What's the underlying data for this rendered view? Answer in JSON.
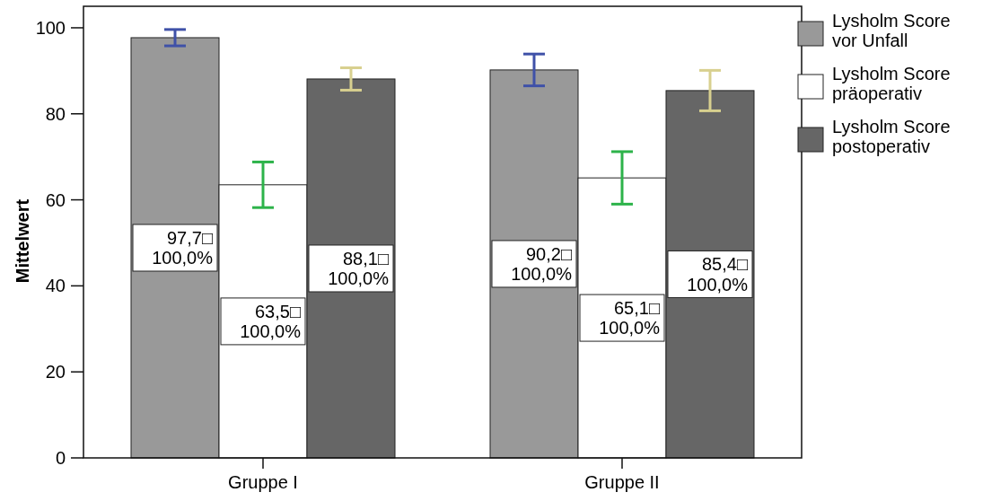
{
  "chart_data": {
    "type": "bar",
    "ylabel": "Mittelwert",
    "categories": [
      "Gruppe I",
      "Gruppe II"
    ],
    "series": [
      {
        "name": "Lysholm Score vor Unfall",
        "color": "#999999",
        "values": [
          97.7,
          90.2
        ],
        "errors": [
          1.9,
          3.7
        ],
        "value_labels": [
          "97,7□\n100,0%",
          "90,2□\n100,0%"
        ]
      },
      {
        "name": "Lysholm Score präoperativ",
        "color": "#ffffff",
        "values": [
          63.5,
          65.1
        ],
        "errors": [
          5.3,
          6.1
        ],
        "value_labels": [
          "63,5□\n100,0%",
          "65,1□\n100,0%"
        ]
      },
      {
        "name": "Lysholm Score postoperativ",
        "color": "#666666",
        "values": [
          88.1,
          85.4
        ],
        "errors": [
          2.6,
          4.7
        ],
        "value_labels": [
          "88,1□\n100,0%",
          "85,4□\n100,0%"
        ]
      }
    ],
    "ylim": [
      0,
      105
    ],
    "yticks": [
      0,
      20,
      40,
      60,
      80,
      100
    ],
    "grid": false,
    "legend": "right"
  }
}
